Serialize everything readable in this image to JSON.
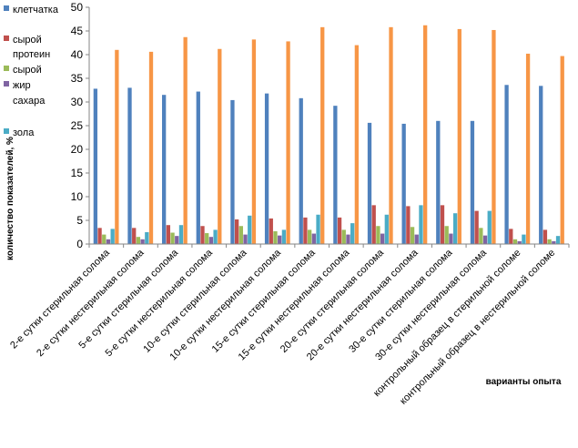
{
  "chart_data": {
    "type": "bar",
    "categories": [
      "2-е сутки стерильная солома",
      "2-е сутки нестерильная солома",
      "5-е сутки стерильная солома",
      "5-е сутки нестерильная солома",
      "10-е сутки стерильная солома",
      "10-е сутки нестерильная солома",
      "15-е сутки стерильная солома",
      "15-е сутки нестерильная солома",
      "20-е сутки стерильная солома",
      "20-е сутки нестерильная солома",
      "30-е сутки стерильная солома",
      "30-е сутки нестерильная солома",
      "контрольный образец в стерильной соломе",
      "контрольный образец в нестерильной соломе"
    ],
    "series": [
      {
        "name": "клетчатка",
        "color": "#4F81BD",
        "values": [
          32.8,
          33.0,
          31.5,
          32.2,
          30.4,
          31.8,
          30.8,
          29.2,
          25.6,
          25.4,
          26.0,
          26.0,
          33.6,
          33.4
        ]
      },
      {
        "name": "сырой протеин",
        "color": "#C0504D",
        "values": [
          3.4,
          3.4,
          4.0,
          3.8,
          5.2,
          5.4,
          5.6,
          5.6,
          8.2,
          8.0,
          8.2,
          7.0,
          3.2,
          3.0
        ]
      },
      {
        "name": "сырой жир",
        "color": "#9BBB59",
        "values": [
          2.0,
          1.5,
          2.4,
          2.3,
          3.8,
          2.7,
          3.0,
          3.0,
          3.8,
          3.6,
          3.8,
          3.4,
          1.0,
          1.0
        ]
      },
      {
        "name": "сахара",
        "color": "#8064A2",
        "values": [
          1.0,
          1.0,
          1.7,
          1.5,
          2.0,
          1.8,
          2.2,
          2.0,
          2.2,
          2.0,
          2.2,
          1.8,
          0.6,
          0.6
        ]
      },
      {
        "name": "зола",
        "color": "#4BACC6",
        "values": [
          3.2,
          2.5,
          4.0,
          3.0,
          6.0,
          3.0,
          6.2,
          4.4,
          6.2,
          8.2,
          6.5,
          7.0,
          2.0,
          1.7
        ]
      },
      {
        "name": "",
        "color": "#F79646",
        "values": [
          41.0,
          40.6,
          43.7,
          41.2,
          43.2,
          42.8,
          45.8,
          42.0,
          45.8,
          46.2,
          45.4,
          45.2,
          40.2,
          39.7
        ]
      }
    ],
    "legend": [
      {
        "label": "клетчатка",
        "color": "#4F81BD"
      },
      {
        "label": "сырой",
        "color": "#C0504D"
      },
      {
        "label": "протеин",
        "color": ""
      },
      {
        "label": "сырой",
        "color": "#9BBB59"
      },
      {
        "label": "жир",
        "color": "#8064A2"
      },
      {
        "label": "сахара",
        "color": ""
      },
      {
        "label": "зола",
        "color": "#4BACC6"
      }
    ],
    "ylabel": "количество показателей, %",
    "xlabel": "варианты   опыта",
    "ylim": [
      0,
      50
    ],
    "yticks": [
      0,
      5,
      10,
      15,
      20,
      25,
      30,
      35,
      40,
      45,
      50
    ],
    "grid": false,
    "legend_position": "top-left"
  }
}
